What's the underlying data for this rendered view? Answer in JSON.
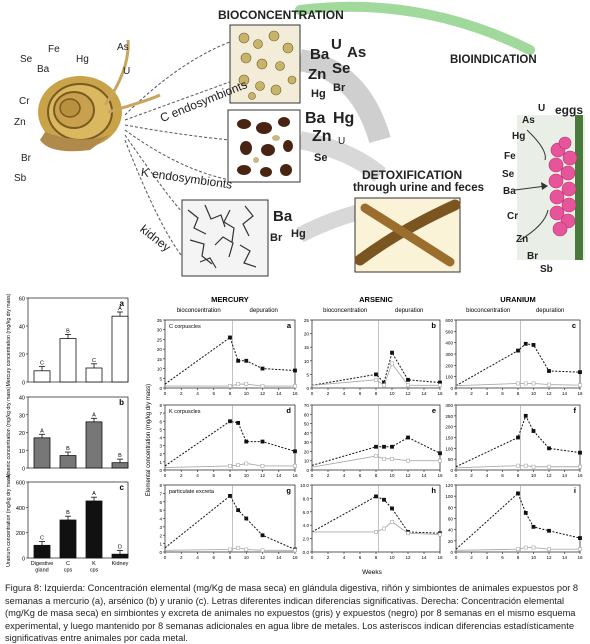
{
  "figure_top": {
    "bioconcentration": "BIOCONCENTRATION",
    "bioindication": "BIOINDICATION",
    "detox_title": "DETOXIFICATION",
    "detox_sub": "through urine and feces",
    "eggs": "eggs",
    "snail_elements": [
      "Se",
      "Fe",
      "Hg",
      "As",
      "Ba",
      "U",
      "Cr",
      "Zn",
      "Br",
      "Sb"
    ],
    "c_endo": "C endosymbionts",
    "k_endo": "K endosymbionts",
    "kidney": "kidney",
    "c_elements": [
      "Ba",
      "U",
      "As",
      "Zn",
      "Se",
      "Hg",
      "Br"
    ],
    "k_elements": [
      "Ba",
      "Hg",
      "Zn",
      "U",
      "Se"
    ],
    "kidney_elements": [
      "Ba",
      "Br",
      "Hg"
    ],
    "egg_elements": [
      "U",
      "As",
      "Hg",
      "Fe",
      "Se",
      "Ba",
      "Cr",
      "Zn",
      "Br",
      "Sb"
    ]
  },
  "bars": {
    "panels": [
      {
        "letter": "a",
        "ylabel": "Mercury concentration (mg/kg dry mass)",
        "ticks": [
          "60",
          "40",
          "20",
          "0"
        ]
      },
      {
        "letter": "b",
        "ylabel": "Arsenic concentration (mg/kg dry mass)",
        "ticks": [
          "40",
          "30",
          "20",
          "10",
          "0"
        ]
      },
      {
        "letter": "c",
        "ylabel": "Uranium concentration (mg/kg dry mass)",
        "ticks": [
          "600",
          "400",
          "200",
          "0"
        ]
      }
    ],
    "categories": [
      "Digestive gland",
      "C cps",
      "K cps",
      "Kidney"
    ]
  },
  "lines": {
    "titles": [
      "MERCURY",
      "ARSENIC",
      "URANIUM"
    ],
    "phase_bioconcentration": "bioconcentration",
    "phase_depuration": "depuration",
    "row_labels": [
      "C corpuscles",
      "K corpuscles",
      "particulate excreta"
    ],
    "ylabel": "Elemental concentration (mg/kg dry mass)",
    "xlabel": "Weeks",
    "xticks": [
      "0",
      "2",
      "4",
      "6",
      "8",
      "10",
      "12",
      "14",
      "16"
    ],
    "panel_letters": [
      "a",
      "b",
      "c",
      "d",
      "e",
      "f",
      "g",
      "h",
      "i"
    ],
    "yticks": [
      [
        "35",
        "30",
        "25",
        "20",
        "15",
        "10",
        "5",
        "0"
      ],
      [
        "25",
        "20",
        "15",
        "10",
        "5",
        "0"
      ],
      [
        "600",
        "500",
        "400",
        "300",
        "200",
        "100",
        "0"
      ],
      [
        "8",
        "7",
        "6",
        "5",
        "4",
        "3",
        "2",
        "1",
        "0"
      ],
      [
        "70",
        "60",
        "50",
        "40",
        "30",
        "20",
        "10",
        "0"
      ],
      [
        "300",
        "250",
        "200",
        "150",
        "100",
        "50",
        "0"
      ],
      [
        "8",
        "7",
        "6",
        "5",
        "4",
        "3",
        "2",
        "1",
        "0"
      ],
      [
        "10.0",
        "8.0",
        "6.0",
        "4.0",
        "2.0",
        "0.0"
      ],
      [
        "120",
        "100",
        "80",
        "60",
        "40",
        "20",
        "0"
      ]
    ]
  },
  "chart_data": [
    {
      "type": "bar",
      "title": "",
      "ylabel": "Mercury concentration (mg/kg dry mass)",
      "ylim": [
        0,
        60
      ],
      "categories": [
        "Digestive gland",
        "C cps",
        "K cps",
        "Kidney"
      ],
      "values": [
        8,
        31,
        10,
        47
      ],
      "letters": [
        "C",
        "B",
        "C",
        "A"
      ],
      "fill": "white"
    },
    {
      "type": "bar",
      "title": "",
      "ylabel": "Arsenic concentration (mg/kg dry mass)",
      "ylim": [
        0,
        40
      ],
      "categories": [
        "Digestive gland",
        "C cps",
        "K cps",
        "Kidney"
      ],
      "values": [
        17,
        7,
        26,
        3
      ],
      "letters": [
        "A",
        "B",
        "A",
        "B"
      ],
      "fill": "gray"
    },
    {
      "type": "bar",
      "title": "",
      "ylabel": "Uranium concentration (mg/kg dry mass)",
      "ylim": [
        0,
        600
      ],
      "categories": [
        "Digestive gland",
        "C cps",
        "K cps",
        "Kidney"
      ],
      "values": [
        100,
        300,
        450,
        30
      ],
      "letters": [
        "C",
        "B",
        "A",
        "D"
      ],
      "fill": "black"
    },
    {
      "type": "line",
      "title": "MERCURY",
      "row": "C corpuscles",
      "ylim": [
        0,
        35
      ],
      "xlim": [
        0,
        16
      ],
      "series": [
        {
          "x": [
            0,
            8,
            9,
            10,
            12,
            16
          ],
          "values": [
            2,
            26,
            14,
            14,
            10,
            9
          ]
        },
        {
          "x": [
            0,
            8,
            9,
            10,
            12,
            16
          ],
          "values": [
            1,
            1,
            2,
            2,
            1,
            1
          ]
        }
      ]
    },
    {
      "type": "line",
      "title": "ARSENIC",
      "row": "C corpuscles",
      "ylim": [
        0,
        25
      ],
      "xlim": [
        0,
        16
      ],
      "series": [
        {
          "x": [
            0,
            8,
            9,
            10,
            12,
            16
          ],
          "values": [
            1,
            5,
            2,
            13,
            3,
            2
          ]
        },
        {
          "x": [
            0,
            8,
            9,
            10,
            12,
            16
          ],
          "values": [
            1,
            3,
            1,
            9,
            1,
            1
          ]
        }
      ]
    },
    {
      "type": "line",
      "title": "URANIUM",
      "row": "C corpuscles",
      "ylim": [
        0,
        600
      ],
      "xlim": [
        0,
        16
      ],
      "series": [
        {
          "x": [
            0,
            8,
            9,
            10,
            12,
            16
          ],
          "values": [
            20,
            330,
            390,
            380,
            150,
            140
          ]
        },
        {
          "x": [
            0,
            8,
            9,
            10,
            12,
            16
          ],
          "values": [
            20,
            40,
            40,
            40,
            30,
            25
          ]
        }
      ]
    },
    {
      "type": "line",
      "title": "MERCURY",
      "row": "K corpuscles",
      "ylim": [
        0,
        8
      ],
      "xlim": [
        0,
        16
      ],
      "series": [
        {
          "x": [
            0,
            8,
            9,
            10,
            12,
            16
          ],
          "values": [
            0.5,
            6,
            5.8,
            3.5,
            3.5,
            2.3
          ]
        },
        {
          "x": [
            0,
            8,
            9,
            10,
            12,
            16
          ],
          "values": [
            0.3,
            0.5,
            0.6,
            0.8,
            0.5,
            0.5
          ]
        }
      ]
    },
    {
      "type": "line",
      "title": "ARSENIC",
      "row": "K corpuscles",
      "ylim": [
        0,
        70
      ],
      "xlim": [
        0,
        16
      ],
      "series": [
        {
          "x": [
            0,
            8,
            9,
            10,
            12,
            16
          ],
          "values": [
            5,
            25,
            25,
            25,
            35,
            18
          ]
        },
        {
          "x": [
            0,
            8,
            9,
            10,
            12,
            16
          ],
          "values": [
            3,
            15,
            12,
            12,
            10,
            10
          ]
        }
      ]
    },
    {
      "type": "line",
      "title": "URANIUM",
      "row": "K corpuscles",
      "ylim": [
        0,
        300
      ],
      "xlim": [
        0,
        16
      ],
      "series": [
        {
          "x": [
            0,
            8,
            9,
            10,
            12,
            16
          ],
          "values": [
            15,
            150,
            250,
            180,
            100,
            80
          ]
        },
        {
          "x": [
            0,
            8,
            9,
            10,
            12,
            16
          ],
          "values": [
            10,
            20,
            20,
            15,
            15,
            15
          ]
        }
      ]
    },
    {
      "type": "line",
      "title": "MERCURY",
      "row": "particulate excreta",
      "ylim": [
        0,
        8
      ],
      "xlim": [
        0,
        16
      ],
      "series": [
        {
          "x": [
            0,
            8,
            9,
            10,
            12,
            16
          ],
          "values": [
            0.5,
            6.7,
            5,
            4,
            2,
            0.3
          ]
        },
        {
          "x": [
            0,
            8,
            9,
            10,
            12,
            16
          ],
          "values": [
            0.2,
            0.3,
            0.5,
            0.3,
            0.2,
            0.2
          ]
        }
      ]
    },
    {
      "type": "line",
      "title": "ARSENIC",
      "row": "particulate excreta",
      "ylim": [
        0,
        10
      ],
      "xlim": [
        0,
        16
      ],
      "series": [
        {
          "x": [
            0,
            8,
            9,
            10,
            12,
            16
          ],
          "values": [
            3,
            8.3,
            7.8,
            6.5,
            3,
            2.8
          ]
        },
        {
          "x": [
            0,
            8,
            9,
            10,
            12,
            16
          ],
          "values": [
            3,
            3,
            3.5,
            4.5,
            2.8,
            2.6
          ]
        }
      ]
    },
    {
      "type": "line",
      "title": "URANIUM",
      "row": "particulate excreta",
      "ylim": [
        0,
        120
      ],
      "xlim": [
        0,
        16
      ],
      "series": [
        {
          "x": [
            0,
            8,
            9,
            10,
            12,
            16
          ],
          "values": [
            5,
            105,
            70,
            45,
            38,
            25
          ]
        },
        {
          "x": [
            0,
            8,
            9,
            10,
            12,
            16
          ],
          "values": [
            3,
            5,
            8,
            8,
            5,
            5
          ]
        }
      ]
    }
  ],
  "caption": {
    "text": "Figura 8: Izquierda: Concentración elemental (mg/Kg de masa seca) en glándula digestiva, riñón y simbiontes de animales expuestos por 8 semanas a mercurio (a), arsénico (b) y uranio (c). Letras diferentes indican diferencias significativas. Derecha: Concentración elemental (mg/Kg de masa seca) en simbiontes y excreta de animales no expuestos (gris) y expuestos (negro) por 8 semanas en el mismo esquema experimental, y luego mantenido por 8 semanas adicionales en agua libre de metales. Los asteriscos indican diferencias estadísticamente significativas entre animales por cada metal."
  },
  "colors": {
    "exposed": "#111111",
    "control": "#aaaaaa",
    "arrow_green": "#7cc67a",
    "eggs": "#e8559a"
  }
}
